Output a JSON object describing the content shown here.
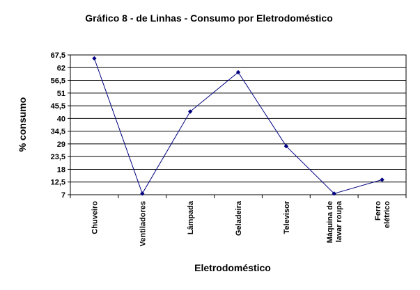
{
  "chart_data": {
    "type": "line",
    "title": "Gráfico 8 - de Linhas - Consumo por Eletrodoméstico",
    "xlabel": "Eletrodoméstico",
    "ylabel": "% consumo",
    "ylim": [
      7,
      67.5
    ],
    "yticks": [
      "7",
      "12,5",
      "18",
      "23,5",
      "29",
      "34,5",
      "40",
      "45,5",
      "51",
      "56,5",
      "62",
      "67,5"
    ],
    "categories": [
      [
        "Chuveiro"
      ],
      [
        "Ventiladores"
      ],
      [
        "Lâmpada"
      ],
      [
        "Geladeira"
      ],
      [
        "Televisor"
      ],
      [
        "Máquina de",
        "lavar roupa"
      ],
      [
        "Ferro",
        "elétrico"
      ]
    ],
    "series": [
      {
        "values": [
          66,
          7.5,
          43,
          60,
          28,
          7.5,
          13.5
        ]
      }
    ],
    "grid": true,
    "line_color": "#000080",
    "marker_color": "#000080"
  }
}
